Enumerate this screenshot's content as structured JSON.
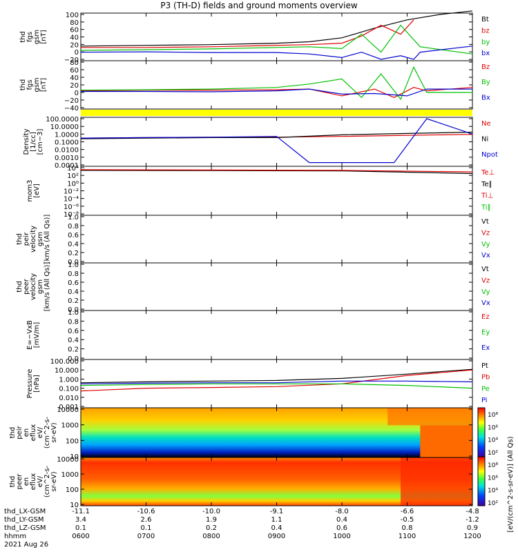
{
  "title": "P3 (TH-D) fields and ground moments overview",
  "date": "2021 Aug 26",
  "colors": {
    "black": "#000000",
    "red": "#e00000",
    "green": "#00c000",
    "blue": "#0000d0",
    "yellow": "#ffff00"
  },
  "panels": [
    {
      "id": "fgs_gsm",
      "ylabel": "thd\nfgs\ngsm\n[nT]",
      "ticks": [
        "100",
        "80",
        "60",
        "40",
        "20",
        "0",
        "−20"
      ],
      "legend": [
        "Bt",
        "bz",
        "by",
        "bx"
      ],
      "legend_colors": [
        "black",
        "red",
        "green",
        "blue"
      ]
    },
    {
      "id": "fgs_gsm2",
      "ylabel": "thd\nfgs\ngsm\n[nT]",
      "ticks": [
        "80",
        "60",
        "40",
        "20",
        "0",
        "−20",
        "−40"
      ],
      "legend": [
        "Bz",
        "By",
        "Bx"
      ],
      "legend_colors": [
        "red",
        "green",
        "blue"
      ]
    },
    {
      "id": "density",
      "ylabel": "Density\n[1/cc]\n[cm−3]",
      "ticks": [
        "100.0000",
        "10.0000",
        "1.0000",
        "0.1000",
        "0.0100",
        "0.0010",
        "0.0001"
      ],
      "legend": [
        "Ne",
        "Ni",
        "Npot"
      ],
      "legend_colors": [
        "red",
        "black",
        "blue"
      ]
    },
    {
      "id": "temp",
      "ylabel": "mom3\n[eV]",
      "ticks": [
        "10⁴",
        "10²",
        "10⁰",
        "10⁻²",
        "10⁻⁴",
        "10⁻⁶",
        "10⁻⁸"
      ],
      "legend": [
        "Te⊥",
        "Te∥",
        "Ti⊥",
        "Ti∥"
      ],
      "legend_colors": [
        "red",
        "black",
        "red",
        "green"
      ]
    },
    {
      "id": "peir_vel",
      "ylabel": "thd\npeir\nvelocity\ngsm\n[km/s (All Qs)]",
      "ticks": [
        "1.0",
        "0.8",
        "0.6",
        "0.4",
        "0.2",
        "0.0"
      ],
      "legend": [
        "Vt",
        "Vz",
        "Vy",
        "Vx"
      ],
      "legend_colors": [
        "black",
        "red",
        "green",
        "blue"
      ]
    },
    {
      "id": "peer_vel",
      "ylabel": "thd\npeer\nvelocity\ngsm\n[km/s (All Qs)]",
      "ticks": [
        "1.0",
        "0.8",
        "0.6",
        "0.4",
        "0.2",
        "0.0"
      ],
      "legend": [
        "Vt",
        "Vz",
        "Vy",
        "Vx"
      ],
      "legend_colors": [
        "black",
        "red",
        "green",
        "blue"
      ]
    },
    {
      "id": "efield",
      "ylabel": "E=−VxB\n[mV/m]",
      "ticks": [
        "1.0",
        "0.8",
        "0.6",
        "0.4",
        "0.2",
        "0.0"
      ],
      "legend": [
        "Ez",
        "Ey",
        "Ex"
      ],
      "legend_colors": [
        "red",
        "green",
        "blue"
      ]
    },
    {
      "id": "pressure",
      "ylabel": "Pressure\n[nPa]",
      "ticks": [
        "100.000",
        "10.000",
        "1.000",
        "0.100",
        "0.010",
        "0.001"
      ],
      "legend": [
        "Pt",
        "Pb",
        "Pe",
        "Pi"
      ],
      "legend_colors": [
        "black",
        "red",
        "green",
        "blue"
      ]
    },
    {
      "id": "peir_en",
      "ylabel": "thd\npeir\nen\neflux\neV/\n(cm^2-s-\nsr-eV)",
      "ticks": [
        "10000",
        "1000",
        "100",
        "10"
      ],
      "legend": [],
      "legend_colors": []
    },
    {
      "id": "peer_en",
      "ylabel": "thd\npeer\nen\neflux\neV/\n(cm^2-s-\nsr-eV)",
      "ticks": [
        "10000",
        "1000",
        "100",
        "10"
      ],
      "legend": [],
      "legend_colors": []
    }
  ],
  "colorbar": {
    "ticks": [
      "10⁸",
      "10⁶",
      "10⁴",
      "10²",
      "10⁸",
      "10⁶",
      "10⁴",
      "10²"
    ],
    "label": "[eV/(cm^2-s-sr-eV)] (All Qs)"
  },
  "ephemeris": {
    "labels": [
      "thd_LX-GSM",
      "thd_LY-GSM",
      "thd_LZ-GSM",
      "hhmm"
    ],
    "columns": [
      [
        "-11.1",
        "3.4",
        "0.1",
        "0600"
      ],
      [
        "-10.6",
        "2.6",
        "0.1",
        "0700"
      ],
      [
        "-10.0",
        "1.9",
        "0.2",
        "0800"
      ],
      [
        "-9.1",
        "1.1",
        "0.4",
        "0900"
      ],
      [
        "-8.0",
        "0.4",
        "0.6",
        "1000"
      ],
      [
        "-6.6",
        "-0.5",
        "0.8",
        "1100"
      ],
      [
        "-4.8",
        "-1.2",
        "0.9",
        "1200"
      ]
    ]
  },
  "chart_data": {
    "type": "line",
    "title": "P3 (TH-D) fields and ground moments overview",
    "x_axis": {
      "label": "hhmm",
      "ticks": [
        "0600",
        "0700",
        "0800",
        "0900",
        "1000",
        "1100",
        "1200"
      ],
      "range": [
        "0600",
        "1200"
      ]
    },
    "panels": [
      {
        "name": "fgs_gsm",
        "ylim": [
          -25,
          100
        ],
        "series": [
          {
            "name": "Bt",
            "color": "black",
            "x": [
              6.0,
              7.0,
              8.0,
              9.0,
              9.5,
              10.0,
              10.5,
              11.0,
              11.5,
              12.0
            ],
            "y": [
              12,
              14,
              16,
              20,
              24,
              35,
              62,
              85,
              100,
              110
            ]
          },
          {
            "name": "bz",
            "color": "red",
            "x": [
              6.0,
              7.0,
              8.0,
              9.0,
              9.5,
              10.0,
              10.3,
              10.6,
              10.9,
              11.1
            ],
            "y": [
              8,
              8,
              10,
              14,
              16,
              20,
              40,
              70,
              45,
              85
            ]
          },
          {
            "name": "by",
            "color": "green",
            "x": [
              6.0,
              7.0,
              8.0,
              9.0,
              9.5,
              10.0,
              10.3,
              10.6,
              10.9,
              11.2,
              12.0
            ],
            "y": [
              0,
              2,
              4,
              8,
              10,
              5,
              45,
              -5,
              70,
              10,
              -10
            ]
          },
          {
            "name": "bx",
            "color": "blue",
            "x": [
              6.0,
              7.0,
              8.0,
              9.0,
              9.5,
              10.0,
              10.3,
              10.6,
              10.9,
              11.1,
              11.2,
              12.0
            ],
            "y": [
              -5,
              -4,
              -6,
              -6,
              -10,
              -20,
              -5,
              -25,
              -15,
              -25,
              -5,
              12
            ]
          }
        ]
      },
      {
        "name": "fgs_gsm2",
        "ylim": [
          -50,
          85
        ],
        "series": [
          {
            "name": "Bz",
            "color": "red",
            "x": [
              6.0,
              7.0,
              8.0,
              9.0,
              9.5,
              10.0,
              10.5,
              10.8,
              11.1,
              11.3,
              12.0
            ],
            "y": [
              0,
              2,
              2,
              3,
              5,
              -15,
              5,
              -20,
              10,
              0,
              10
            ]
          },
          {
            "name": "By",
            "color": "green",
            "x": [
              6.0,
              7.0,
              8.0,
              9.0,
              9.5,
              10.0,
              10.3,
              10.6,
              10.9,
              11.1,
              11.3,
              12.0
            ],
            "y": [
              2,
              3,
              5,
              10,
              20,
              35,
              -20,
              50,
              -25,
              70,
              -5,
              -5
            ]
          },
          {
            "name": "Bx",
            "color": "blue",
            "x": [
              6.0,
              7.0,
              8.0,
              9.0,
              9.5,
              10.0,
              10.5,
              11.0,
              11.3,
              12.0
            ],
            "y": [
              -2,
              -2,
              -3,
              0,
              5,
              -10,
              -8,
              -15,
              5,
              5
            ]
          }
        ]
      },
      {
        "name": "density",
        "ylim": [
          0.0001,
          100
        ],
        "log": true,
        "series": [
          {
            "name": "Ne",
            "color": "red",
            "x": [
              6,
              7,
              8,
              9,
              10,
              11,
              12
            ],
            "y": [
              0.3,
              0.35,
              0.4,
              0.4,
              0.5,
              0.7,
              0.9
            ]
          },
          {
            "name": "Ni",
            "color": "black",
            "x": [
              6,
              7,
              8,
              9,
              10,
              11,
              12
            ],
            "y": [
              0.25,
              0.3,
              0.35,
              0.35,
              0.8,
              1.2,
              1.8
            ]
          },
          {
            "name": "Npot",
            "color": "blue",
            "x": [
              6,
              7,
              8,
              9,
              9.5,
              10,
              10.8,
              11.3,
              12
            ],
            "y": [
              0.3,
              0.35,
              0.4,
              0.5,
              0.0002,
              0.0002,
              0.0002,
              100,
              1
            ]
          }
        ]
      },
      {
        "name": "temp",
        "ylim": [
          1e-08,
          10000.0
        ],
        "log": true,
        "series": [
          {
            "name": "Te∥",
            "color": "black",
            "x": [
              6,
              8,
              10,
              12
            ],
            "y": [
              2000,
              1800,
              1500,
              300
            ]
          },
          {
            "name": "Ti⊥",
            "color": "red",
            "x": [
              6,
              8,
              10,
              12
            ],
            "y": [
              3000,
              2500,
              2000,
              800
            ]
          }
        ]
      },
      {
        "name": "pressure",
        "ylim": [
          0.001,
          100
        ],
        "log": true,
        "series": [
          {
            "name": "Pt",
            "color": "black",
            "x": [
              6,
              7,
              8,
              9,
              10,
              11,
              12
            ],
            "y": [
              0.4,
              0.5,
              0.6,
              0.7,
              1.2,
              3.5,
              12
            ]
          },
          {
            "name": "Pb",
            "color": "red",
            "x": [
              6,
              7,
              8,
              9,
              10,
              11,
              12
            ],
            "y": [
              0.05,
              0.1,
              0.12,
              0.15,
              0.3,
              2.5,
              10
            ]
          },
          {
            "name": "Pe",
            "color": "green",
            "x": [
              6,
              7,
              8,
              9,
              10,
              11,
              12
            ],
            "y": [
              0.2,
              0.25,
              0.3,
              0.3,
              0.3,
              0.2,
              0.1
            ]
          },
          {
            "name": "Pi",
            "color": "blue",
            "x": [
              6,
              7,
              8,
              9,
              10,
              11,
              12
            ],
            "y": [
              0.3,
              0.35,
              0.4,
              0.4,
              0.6,
              0.6,
              0.5
            ]
          }
        ]
      }
    ]
  }
}
